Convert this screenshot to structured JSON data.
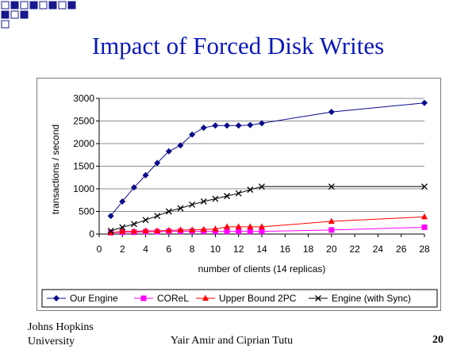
{
  "slide": {
    "title": "Impact of Forced Disk Writes",
    "footer_org_line1": "Johns Hopkins",
    "footer_org_line2": "University",
    "footer_authors": "Yair Amir and Ciprian Tutu",
    "page_number": "20",
    "colors": {
      "title": "#0a18b8",
      "deco_squares": "#18188c"
    }
  },
  "chart_data": {
    "type": "line",
    "title": "",
    "xlabel": "number of clients (14 replicas)",
    "ylabel": "transactions / second",
    "xlim": [
      0,
      28
    ],
    "ylim": [
      0,
      3000
    ],
    "x_ticks": [
      0,
      2,
      4,
      6,
      8,
      10,
      12,
      14,
      16,
      18,
      20,
      22,
      24,
      26,
      28
    ],
    "y_ticks": [
      0,
      500,
      1000,
      1500,
      2000,
      2500,
      3000
    ],
    "grid": "horizontal",
    "legend_position": "bottom",
    "series": [
      {
        "name": "Our Engine",
        "color": "#0a0a8c",
        "marker": "diamond",
        "points": [
          [
            1,
            400
          ],
          [
            2,
            720
          ],
          [
            3,
            1030
          ],
          [
            4,
            1300
          ],
          [
            5,
            1570
          ],
          [
            6,
            1830
          ],
          [
            7,
            1960
          ],
          [
            8,
            2200
          ],
          [
            9,
            2350
          ],
          [
            10,
            2400
          ],
          [
            11,
            2400
          ],
          [
            12,
            2400
          ],
          [
            13,
            2410
          ],
          [
            14,
            2450
          ],
          [
            20,
            2700
          ],
          [
            28,
            2900
          ]
        ]
      },
      {
        "name": "COReL",
        "color": "#ff00ff",
        "marker": "square",
        "points": [
          [
            1,
            30
          ],
          [
            2,
            40
          ],
          [
            3,
            40
          ],
          [
            4,
            50
          ],
          [
            5,
            50
          ],
          [
            6,
            60
          ],
          [
            7,
            60
          ],
          [
            8,
            60
          ],
          [
            9,
            60
          ],
          [
            10,
            60
          ],
          [
            11,
            60
          ],
          [
            12,
            60
          ],
          [
            13,
            60
          ],
          [
            14,
            60
          ],
          [
            20,
            90
          ],
          [
            28,
            150
          ]
        ]
      },
      {
        "name": "Upper Bound 2PC",
        "color": "#ff0000",
        "marker": "triangle",
        "points": [
          [
            1,
            30
          ],
          [
            2,
            60
          ],
          [
            3,
            60
          ],
          [
            4,
            70
          ],
          [
            5,
            70
          ],
          [
            6,
            80
          ],
          [
            7,
            90
          ],
          [
            8,
            90
          ],
          [
            9,
            100
          ],
          [
            10,
            110
          ],
          [
            11,
            160
          ],
          [
            12,
            160
          ],
          [
            13,
            160
          ],
          [
            14,
            160
          ],
          [
            20,
            280
          ],
          [
            28,
            380
          ]
        ]
      },
      {
        "name": "Engine (with Sync)",
        "color": "#000000",
        "marker": "x",
        "points": [
          [
            1,
            70
          ],
          [
            2,
            150
          ],
          [
            3,
            220
          ],
          [
            4,
            310
          ],
          [
            5,
            400
          ],
          [
            6,
            500
          ],
          [
            7,
            570
          ],
          [
            8,
            650
          ],
          [
            9,
            720
          ],
          [
            10,
            780
          ],
          [
            11,
            840
          ],
          [
            12,
            900
          ],
          [
            13,
            980
          ],
          [
            14,
            1050
          ],
          [
            20,
            1050
          ],
          [
            28,
            1050
          ]
        ]
      }
    ]
  }
}
